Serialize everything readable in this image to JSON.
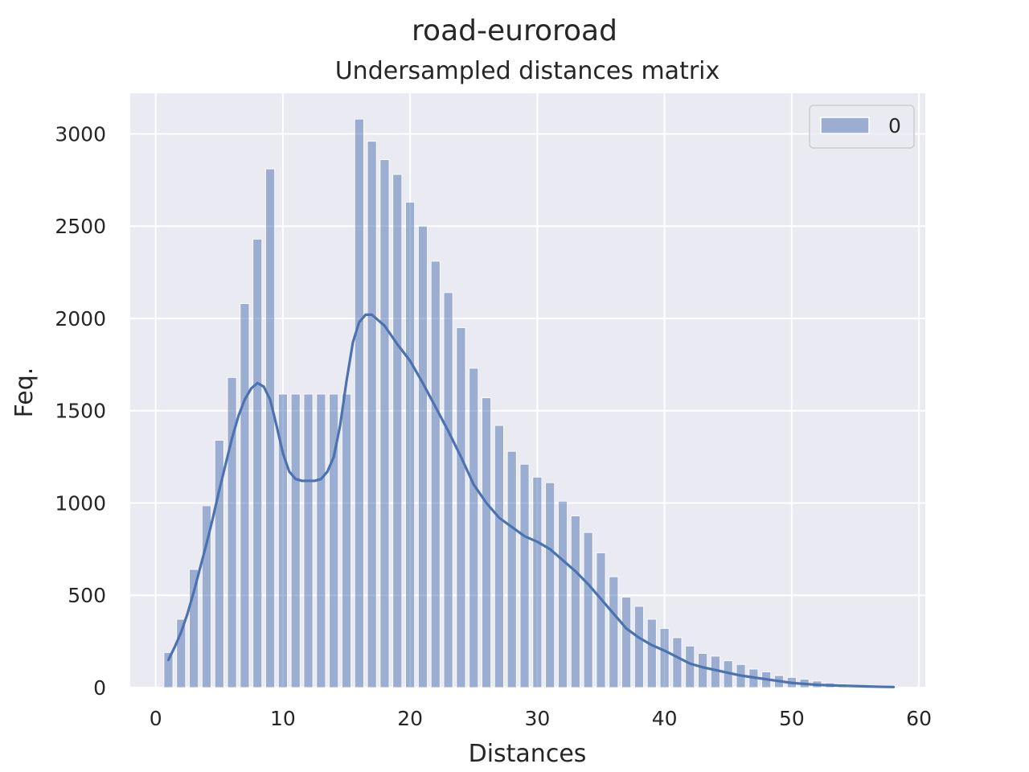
{
  "chart_data": {
    "type": "bar",
    "suptitle": "road-euroroad",
    "title": "Undersampled distances matrix",
    "xlabel": "Distances",
    "ylabel": "Feq.",
    "xlim": [
      -2,
      60.5
    ],
    "ylim": [
      0,
      3220
    ],
    "xticks": [
      0,
      10,
      20,
      30,
      40,
      50,
      60
    ],
    "yticks": [
      0,
      500,
      1000,
      1500,
      2000,
      2500,
      3000
    ],
    "grid": true,
    "background_color": "#eaeaf2",
    "bar_color": "#4c72b0",
    "bar_opacity": 0.5,
    "line_color": "#4c72b0",
    "legend": {
      "position": "top-right",
      "entries": [
        "0"
      ]
    },
    "bin_width": 0.7,
    "series": [
      {
        "name": "0",
        "x": [
          1,
          2,
          3,
          4,
          5,
          6,
          7,
          8,
          9,
          10,
          11,
          12,
          13,
          14,
          15,
          16,
          17,
          18,
          19,
          20,
          21,
          22,
          23,
          24,
          25,
          26,
          27,
          28,
          29,
          30,
          31,
          32,
          33,
          34,
          35,
          36,
          37,
          38,
          39,
          40,
          41,
          42,
          43,
          44,
          45,
          46,
          47,
          48,
          49,
          50,
          51,
          52,
          53,
          54,
          55,
          56,
          57,
          58
        ],
        "values": [
          190,
          370,
          640,
          985,
          1340,
          1680,
          2080,
          2430,
          2810,
          1590,
          1590,
          1590,
          1590,
          1590,
          1590,
          3080,
          2960,
          2860,
          2780,
          2630,
          2500,
          2310,
          2140,
          1950,
          1730,
          1570,
          1420,
          1280,
          1210,
          1140,
          1110,
          1010,
          930,
          840,
          730,
          600,
          490,
          440,
          370,
          320,
          270,
          225,
          185,
          170,
          145,
          125,
          100,
          85,
          65,
          55,
          45,
          35,
          25,
          20,
          15,
          10,
          8,
          5
        ]
      }
    ],
    "kde": {
      "x": [
        1,
        1.5,
        2,
        2.5,
        3,
        3.5,
        4,
        4.5,
        5,
        5.5,
        6,
        6.5,
        7,
        7.5,
        8,
        8.5,
        9,
        9.5,
        10,
        10.5,
        11,
        11.5,
        12,
        12.5,
        13,
        13.5,
        14,
        14.5,
        15,
        15.5,
        16,
        16.5,
        17,
        17.5,
        18,
        18.5,
        19,
        20,
        21,
        22,
        23,
        24,
        25,
        26,
        27,
        28,
        29,
        30,
        31,
        32,
        33,
        34,
        35,
        36,
        37,
        38,
        39,
        40,
        41,
        42,
        43,
        44,
        45,
        46,
        47,
        48,
        49,
        50,
        51,
        52,
        53,
        54,
        55,
        56,
        57,
        58
      ],
      "y": [
        150,
        220,
        300,
        400,
        520,
        650,
        780,
        920,
        1070,
        1210,
        1350,
        1470,
        1560,
        1620,
        1650,
        1630,
        1560,
        1420,
        1270,
        1170,
        1130,
        1120,
        1120,
        1120,
        1130,
        1170,
        1250,
        1420,
        1660,
        1870,
        1980,
        2020,
        2020,
        1990,
        1960,
        1910,
        1860,
        1770,
        1650,
        1520,
        1390,
        1250,
        1100,
        1000,
        920,
        870,
        820,
        790,
        750,
        690,
        630,
        560,
        480,
        400,
        320,
        270,
        230,
        200,
        165,
        130,
        110,
        95,
        80,
        65,
        55,
        45,
        35,
        25,
        20,
        15,
        12,
        10,
        8,
        6,
        4,
        3
      ]
    }
  }
}
